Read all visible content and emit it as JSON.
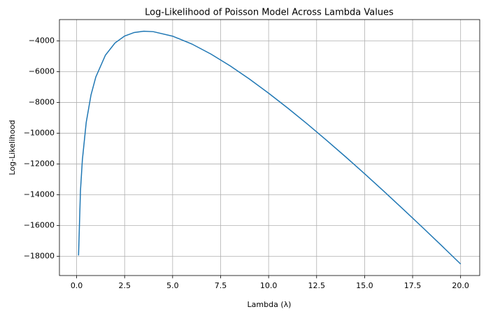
{
  "chart_data": {
    "type": "line",
    "title": "Log-Likelihood of Poisson Model Across Lambda Values",
    "x_label": "Lambda (λ)",
    "y_label": "Log-Likelihood",
    "color": "#1f77b4",
    "grid": true,
    "x": [
      0.1,
      0.2,
      0.3,
      0.5,
      0.75,
      1,
      1.5,
      2,
      2.5,
      3,
      3.5,
      4,
      5,
      6,
      7,
      8,
      9,
      10,
      11,
      12,
      13,
      14,
      15,
      16,
      17,
      18,
      19,
      20
    ],
    "values": [
      -17950,
      -13738,
      -11726,
      -9300,
      -7510,
      -6347,
      -4927,
      -4134,
      -3685,
      -3454,
      -3372,
      -3401,
      -3692,
      -4200,
      -4859,
      -5628,
      -6480,
      -7399,
      -8371,
      -9387,
      -10441,
      -11526,
      -12638,
      -13775,
      -14932,
      -16107,
      -17299,
      -18506
    ],
    "xlim": [
      -0.895,
      20.995
    ],
    "ylim": [
      -19256,
      -2614
    ],
    "xticks": [
      {
        "value": 0,
        "label": "0.0"
      },
      {
        "value": 2.5,
        "label": "2.5"
      },
      {
        "value": 5,
        "label": "5.0"
      },
      {
        "value": 7.5,
        "label": "7.5"
      },
      {
        "value": 10,
        "label": "10.0"
      },
      {
        "value": 12.5,
        "label": "12.5"
      },
      {
        "value": 15,
        "label": "15.0"
      },
      {
        "value": 17.5,
        "label": "17.5"
      },
      {
        "value": 20,
        "label": "20.0"
      }
    ],
    "yticks": [
      {
        "value": -18000,
        "label": "−18000"
      },
      {
        "value": -16000,
        "label": "−16000"
      },
      {
        "value": -14000,
        "label": "−14000"
      },
      {
        "value": -12000,
        "label": "−12000"
      },
      {
        "value": -10000,
        "label": "−10000"
      },
      {
        "value": -8000,
        "label": "−8000"
      },
      {
        "value": -6000,
        "label": "−6000"
      },
      {
        "value": -4000,
        "label": "−4000"
      }
    ]
  }
}
